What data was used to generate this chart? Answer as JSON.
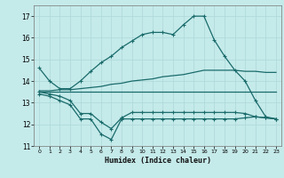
{
  "xlabel": "Humidex (Indice chaleur)",
  "background_color": "#c5eaea",
  "grid_color": "#add8d8",
  "line_color": "#1a6b6b",
  "xlim": [
    -0.5,
    23.5
  ],
  "ylim": [
    11,
    17.5
  ],
  "yticks": [
    11,
    12,
    13,
    14,
    15,
    16,
    17
  ],
  "xticks": [
    0,
    1,
    2,
    3,
    4,
    5,
    6,
    7,
    8,
    9,
    10,
    11,
    12,
    13,
    14,
    15,
    16,
    17,
    18,
    19,
    20,
    21,
    22,
    23
  ],
  "line1_x": [
    0,
    1,
    2,
    3,
    4,
    5,
    6,
    7,
    8,
    9,
    10,
    11,
    12,
    13,
    14,
    15,
    16,
    17,
    18,
    19,
    20,
    21,
    22,
    23
  ],
  "line1_y": [
    14.6,
    14.0,
    13.65,
    13.65,
    14.0,
    14.45,
    14.85,
    15.15,
    15.55,
    15.85,
    16.15,
    16.25,
    16.25,
    16.15,
    16.6,
    17.0,
    17.0,
    15.9,
    15.15,
    14.5,
    14.0,
    13.1,
    12.35,
    12.25
  ],
  "line2_x": [
    0,
    1,
    2,
    3,
    4,
    5,
    6,
    7,
    8,
    9,
    10,
    11,
    12,
    13,
    14,
    15,
    16,
    17,
    18,
    19,
    20,
    21,
    22,
    23
  ],
  "line2_y": [
    13.55,
    13.55,
    13.6,
    13.6,
    13.65,
    13.7,
    13.75,
    13.85,
    13.9,
    14.0,
    14.05,
    14.1,
    14.2,
    14.25,
    14.3,
    14.4,
    14.5,
    14.5,
    14.5,
    14.5,
    14.45,
    14.45,
    14.4,
    14.4
  ],
  "line3_x": [
    0,
    1,
    2,
    3,
    4,
    5,
    6,
    7,
    8,
    9,
    10,
    11,
    12,
    13,
    14,
    15,
    16,
    17,
    18,
    19,
    20,
    21,
    22,
    23
  ],
  "line3_y": [
    13.5,
    13.5,
    13.5,
    13.5,
    13.5,
    13.5,
    13.5,
    13.5,
    13.5,
    13.5,
    13.5,
    13.5,
    13.5,
    13.5,
    13.5,
    13.5,
    13.5,
    13.5,
    13.5,
    13.5,
    13.5,
    13.5,
    13.5,
    13.5
  ],
  "line4_x": [
    0,
    1,
    2,
    3,
    4,
    5,
    6,
    7,
    8,
    9,
    10,
    11,
    12,
    13,
    14,
    15,
    16,
    17,
    18,
    19,
    20,
    21,
    22,
    23
  ],
  "line4_y": [
    13.5,
    13.4,
    13.3,
    13.1,
    12.5,
    12.5,
    12.1,
    11.8,
    12.3,
    12.55,
    12.55,
    12.55,
    12.55,
    12.55,
    12.55,
    12.55,
    12.55,
    12.55,
    12.55,
    12.55,
    12.5,
    12.35,
    12.3,
    12.25
  ],
  "line5_x": [
    0,
    1,
    2,
    3,
    4,
    5,
    6,
    7,
    8,
    9,
    10,
    11,
    12,
    13,
    14,
    15,
    16,
    17,
    18,
    19,
    20,
    21,
    22,
    23
  ],
  "line5_y": [
    13.4,
    13.3,
    13.1,
    12.9,
    12.25,
    12.25,
    11.55,
    11.3,
    12.25,
    12.25,
    12.25,
    12.25,
    12.25,
    12.25,
    12.25,
    12.25,
    12.25,
    12.25,
    12.25,
    12.25,
    12.3,
    12.35,
    12.3,
    12.25
  ]
}
